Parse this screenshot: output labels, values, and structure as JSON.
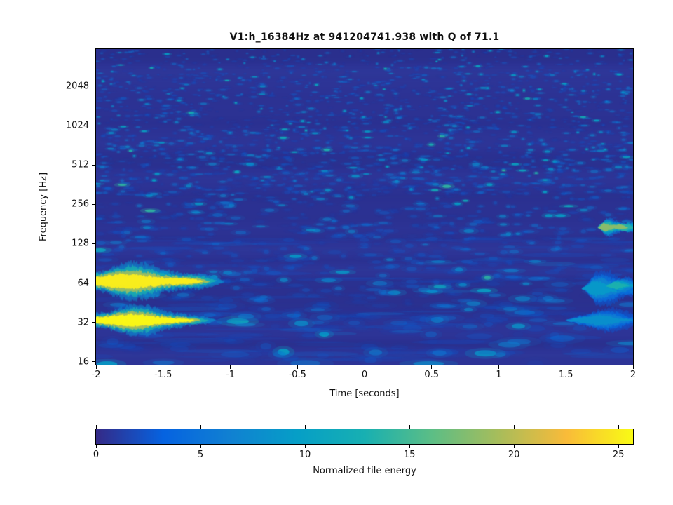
{
  "chart_data": {
    "type": "heatmap",
    "subtype": "q-transform-spectrogram",
    "title": "V1:h_16384Hz at 941204741.938 with Q of 71.1",
    "channel": "V1:h_16384Hz",
    "gps_time": "941204741.938",
    "q_value": "71.1",
    "xlabel": "Time [seconds]",
    "ylabel": "Frequency [Hz]",
    "xlim": [
      -2,
      2
    ],
    "x_ticks": [
      -2,
      -1.5,
      -1,
      -0.5,
      0,
      0.5,
      1,
      1.5,
      2
    ],
    "ylim": [
      15.2,
      3940
    ],
    "y_scale": "log",
    "y_ticks": [
      16,
      32,
      64,
      128,
      256,
      512,
      1024,
      2048
    ],
    "grid": false,
    "colorbar": {
      "label": "Normalized tile energy",
      "ticks": [
        0,
        5,
        10,
        15,
        20,
        25
      ],
      "range": [
        0,
        25.7
      ],
      "colormap": "parula",
      "colormap_stops": [
        [
          0.0,
          "#352a87"
        ],
        [
          0.125,
          "#0663e1"
        ],
        [
          0.25,
          "#1181d2"
        ],
        [
          0.375,
          "#069fc7"
        ],
        [
          0.5,
          "#18b0b2"
        ],
        [
          0.625,
          "#5cbe86"
        ],
        [
          0.75,
          "#a8bd5b"
        ],
        [
          0.875,
          "#f9bb3a"
        ],
        [
          1.0,
          "#f9fb15"
        ]
      ]
    },
    "background": {
      "mean_tile_energy": 2.0,
      "description": "dark navy background with scattered blue noise tiles, denser above ~200 Hz"
    },
    "features": [
      {
        "label": "loud burst ~64 Hz",
        "t": [
          -2.0,
          -1.2
        ],
        "f": [
          56,
          78
        ],
        "peak_energy": 25
      },
      {
        "label": "loud burst ~33 Hz",
        "t": [
          -2.0,
          -1.26
        ],
        "f": [
          29,
          38
        ],
        "peak_energy": 25.5
      },
      {
        "label": "streak ~170 Hz",
        "t": [
          1.74,
          1.96
        ],
        "f": [
          158,
          186
        ],
        "peak_energy": 18
      },
      {
        "label": "streak ~60 Hz",
        "t": [
          1.62,
          2.0
        ],
        "f": [
          50,
          68
        ],
        "peak_energy": 9
      },
      {
        "label": "dash ~60 Hz",
        "t": [
          1.8,
          1.97
        ],
        "f": [
          57,
          66
        ],
        "peak_energy": 13
      },
      {
        "label": "streak ~33 Hz",
        "t": [
          1.5,
          2.0
        ],
        "f": [
          30,
          37
        ],
        "peak_energy": 8
      }
    ]
  }
}
